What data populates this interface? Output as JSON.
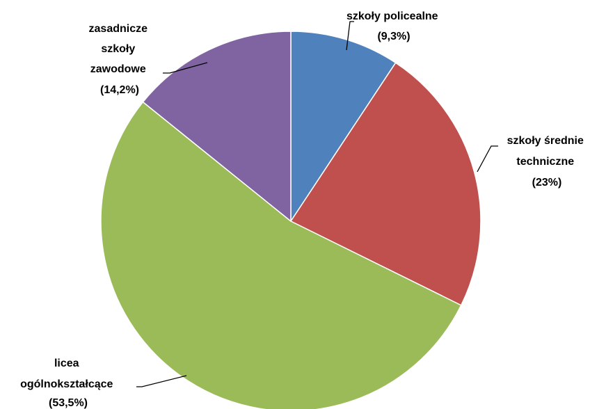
{
  "chart_data": {
    "type": "pie",
    "title": "",
    "start_angle_deg": 0,
    "direction": "clockwise",
    "legend": "none",
    "slices": [
      {
        "lines": [
          "szkoły policealne",
          "(9,3%)"
        ],
        "value": 9.3,
        "color": "#4f81bd"
      },
      {
        "lines": [
          "szkoły średnie",
          "techniczne",
          "(23%)"
        ],
        "value": 23.0,
        "color": "#c0504d"
      },
      {
        "lines": [
          "licea",
          "ogólnokształcące",
          "(53,5%)"
        ],
        "value": 53.5,
        "color": "#9bbb59"
      },
      {
        "lines": [
          "zasadnicze",
          "szkoły",
          "zawodowe",
          "(14,2%)"
        ],
        "value": 14.2,
        "color": "#8064a2"
      }
    ]
  }
}
